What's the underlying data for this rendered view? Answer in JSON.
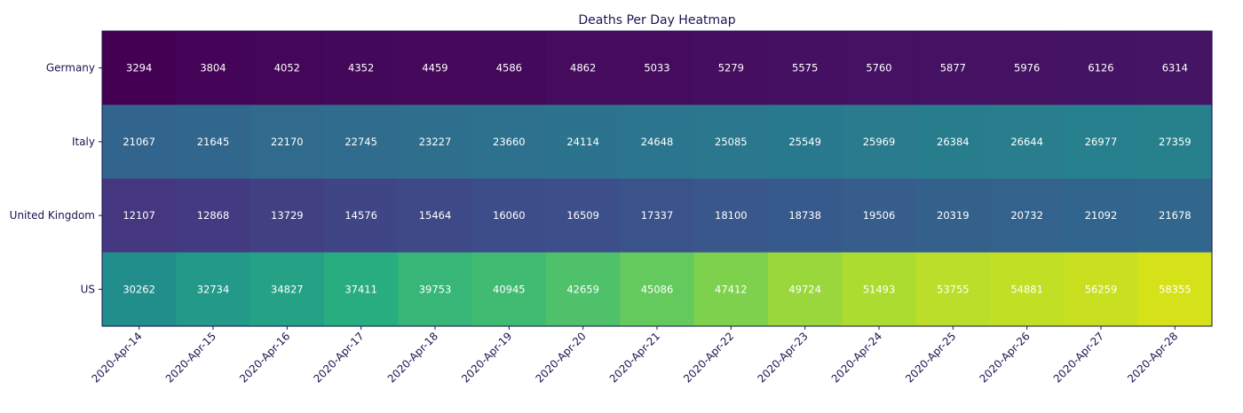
{
  "chart_data": {
    "type": "heatmap",
    "title": "Deaths Per Day Heatmap",
    "xlabel": "",
    "ylabel": "",
    "colormap": "viridis",
    "grid": false,
    "legend": "none",
    "categories": [
      "2020-Apr-14",
      "2020-Apr-15",
      "2020-Apr-16",
      "2020-Apr-17",
      "2020-Apr-18",
      "2020-Apr-19",
      "2020-Apr-20",
      "2020-Apr-21",
      "2020-Apr-22",
      "2020-Apr-23",
      "2020-Apr-24",
      "2020-Apr-25",
      "2020-Apr-26",
      "2020-Apr-27",
      "2020-Apr-28"
    ],
    "rows": [
      "Germany",
      "Italy",
      "United Kingdom",
      "US"
    ],
    "values": [
      [
        3294,
        3804,
        4052,
        4352,
        4459,
        4586,
        4862,
        5033,
        5279,
        5575,
        5760,
        5877,
        5976,
        6126,
        6314
      ],
      [
        21067,
        21645,
        22170,
        22745,
        23227,
        23660,
        24114,
        24648,
        25085,
        25549,
        25969,
        26384,
        26644,
        26977,
        27359
      ],
      [
        12107,
        12868,
        13729,
        14576,
        15464,
        16060,
        16509,
        17337,
        18100,
        18738,
        19506,
        20319,
        20732,
        21092,
        21678
      ],
      [
        30262,
        32734,
        34827,
        37411,
        39753,
        40945,
        42659,
        45086,
        47412,
        49724,
        51493,
        53755,
        54881,
        56259,
        58355
      ]
    ]
  }
}
